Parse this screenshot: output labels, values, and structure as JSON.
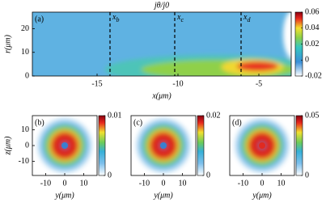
{
  "chart_data": [
    {
      "type": "heatmap",
      "label": "(a)",
      "title": "jθ/j0",
      "xlabel": "x(μm)",
      "ylabel": "r(μm)",
      "xlim": [
        -19,
        -3
      ],
      "ylim": [
        0,
        27
      ],
      "xticks": [
        -15,
        -10,
        -5
      ],
      "yticks": [
        0,
        10,
        20
      ],
      "clim": [
        -0.02,
        0.06
      ],
      "cticks": [
        -0.02,
        0,
        0.02,
        0.04,
        0.06
      ],
      "annotations": [
        {
          "text": "x",
          "sub": "b",
          "x": -14.2
        },
        {
          "text": "x",
          "sub": "c",
          "x": -10.2
        },
        {
          "text": "x",
          "sub": "d",
          "x": -6.1
        }
      ]
    },
    {
      "type": "heatmap",
      "label": "(b)",
      "xlabel": "y(μm)",
      "ylabel": "z(μm)",
      "xlim": [
        -17,
        17
      ],
      "ylim": [
        -19,
        19
      ],
      "xticks": [
        -10,
        0,
        10
      ],
      "yticks": [
        -10,
        0,
        10
      ],
      "clim": [
        0,
        0.01
      ],
      "cticks": [
        0,
        0.01
      ]
    },
    {
      "type": "heatmap",
      "label": "(c)",
      "xlabel": "y(μm)",
      "xlim": [
        -17,
        17
      ],
      "ylim": [
        -19,
        19
      ],
      "xticks": [
        -10,
        0,
        10
      ],
      "clim": [
        0,
        0.02
      ],
      "cticks": [
        0,
        0.02
      ]
    },
    {
      "type": "heatmap",
      "label": "(d)",
      "xlabel": "y(μm)",
      "xlim": [
        -17,
        17
      ],
      "ylim": [
        -19,
        19
      ],
      "xticks": [
        -10,
        0,
        10
      ],
      "clim": [
        0,
        0.05
      ],
      "cticks": [
        0,
        0.05
      ]
    }
  ]
}
